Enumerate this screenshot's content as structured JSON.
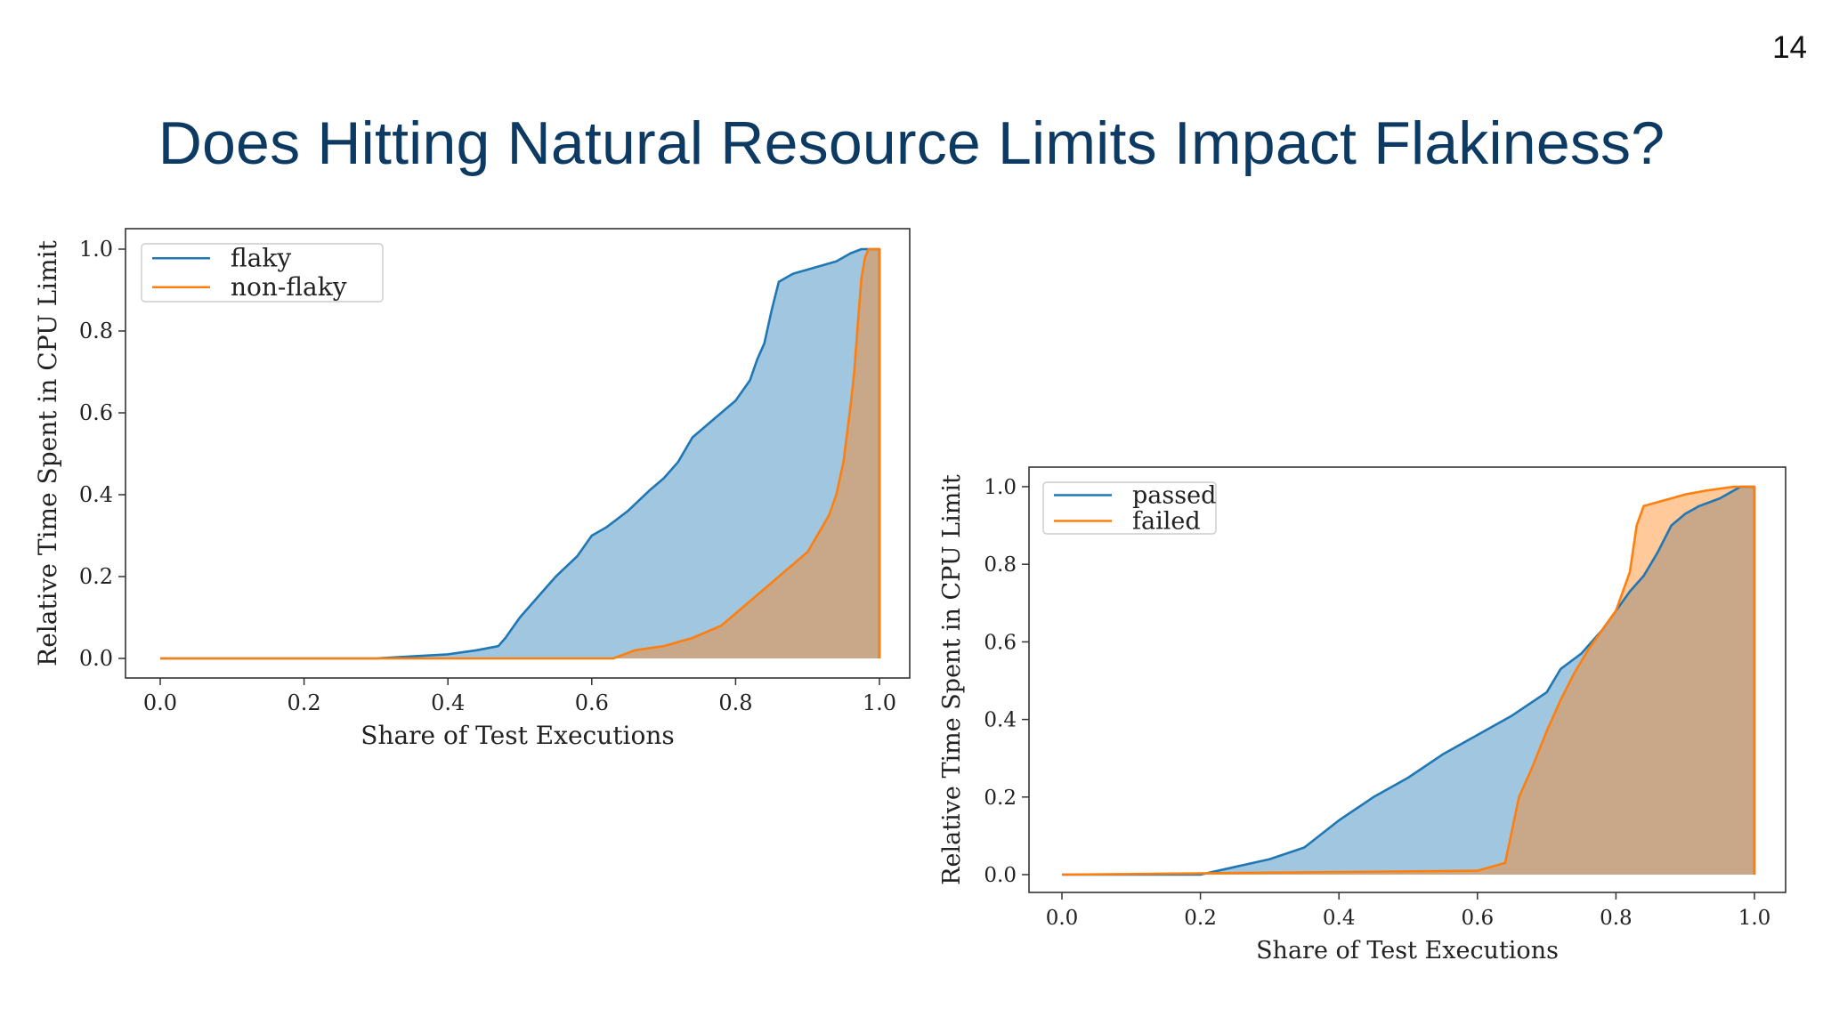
{
  "slide": {
    "page_number": "14",
    "title": "Does Hitting Natural Resource Limits Impact Flakiness?"
  },
  "colors": {
    "blue": "#1f77b4",
    "orange": "#ff7f0e",
    "title": "#0d3a63"
  },
  "chart_data": [
    {
      "type": "area",
      "xlabel": "Share of Test Executions",
      "ylabel": "Relative Time Spent in CPU Limit",
      "xlim": [
        0,
        1
      ],
      "ylim": [
        0,
        1
      ],
      "xticks": [
        "0.0",
        "0.2",
        "0.4",
        "0.6",
        "0.8",
        "1.0"
      ],
      "yticks": [
        "0.0",
        "0.2",
        "0.4",
        "0.6",
        "0.8",
        "1.0"
      ],
      "legend_position": "top-left",
      "series": [
        {
          "name": "flaky",
          "color": "#1f77b4",
          "x": [
            0.0,
            0.3,
            0.35,
            0.4,
            0.44,
            0.47,
            0.48,
            0.5,
            0.53,
            0.55,
            0.58,
            0.6,
            0.62,
            0.65,
            0.68,
            0.7,
            0.72,
            0.74,
            0.76,
            0.78,
            0.8,
            0.82,
            0.83,
            0.84,
            0.85,
            0.86,
            0.88,
            0.9,
            0.92,
            0.94,
            0.96,
            0.975,
            1.0
          ],
          "y": [
            0.0,
            0.0,
            0.005,
            0.01,
            0.02,
            0.03,
            0.05,
            0.1,
            0.16,
            0.2,
            0.25,
            0.3,
            0.32,
            0.36,
            0.41,
            0.44,
            0.48,
            0.54,
            0.57,
            0.6,
            0.63,
            0.68,
            0.73,
            0.77,
            0.85,
            0.92,
            0.94,
            0.95,
            0.96,
            0.97,
            0.99,
            1.0,
            1.0
          ]
        },
        {
          "name": "non-flaky",
          "color": "#ff7f0e",
          "x": [
            0.0,
            0.63,
            0.66,
            0.7,
            0.74,
            0.78,
            0.82,
            0.86,
            0.9,
            0.92,
            0.93,
            0.94,
            0.95,
            0.955,
            0.96,
            0.965,
            0.97,
            0.975,
            0.98,
            0.985,
            1.0
          ],
          "y": [
            0.0,
            0.0,
            0.02,
            0.03,
            0.05,
            0.08,
            0.14,
            0.2,
            0.26,
            0.32,
            0.35,
            0.4,
            0.48,
            0.55,
            0.62,
            0.7,
            0.82,
            0.93,
            0.98,
            1.0,
            1.0
          ]
        }
      ]
    },
    {
      "type": "area",
      "xlabel": "Share of Test Executions",
      "ylabel": "Relative Time Spent in CPU Limit",
      "xlim": [
        0,
        1
      ],
      "ylim": [
        0,
        1
      ],
      "xticks": [
        "0.0",
        "0.2",
        "0.4",
        "0.6",
        "0.8",
        "1.0"
      ],
      "yticks": [
        "0.0",
        "0.2",
        "0.4",
        "0.6",
        "0.8",
        "1.0"
      ],
      "legend_position": "top-left",
      "series": [
        {
          "name": "passed",
          "color": "#1f77b4",
          "x": [
            0.0,
            0.2,
            0.25,
            0.3,
            0.35,
            0.4,
            0.45,
            0.5,
            0.55,
            0.6,
            0.65,
            0.7,
            0.72,
            0.75,
            0.78,
            0.8,
            0.82,
            0.84,
            0.86,
            0.88,
            0.9,
            0.92,
            0.95,
            0.98,
            1.0
          ],
          "y": [
            0.0,
            0.0,
            0.02,
            0.04,
            0.07,
            0.14,
            0.2,
            0.25,
            0.31,
            0.36,
            0.41,
            0.47,
            0.53,
            0.57,
            0.63,
            0.68,
            0.73,
            0.77,
            0.83,
            0.9,
            0.93,
            0.95,
            0.97,
            1.0,
            1.0
          ]
        },
        {
          "name": "failed",
          "color": "#ff7f0e",
          "x": [
            0.0,
            0.6,
            0.64,
            0.66,
            0.68,
            0.7,
            0.72,
            0.74,
            0.76,
            0.78,
            0.8,
            0.81,
            0.82,
            0.83,
            0.84,
            0.86,
            0.88,
            0.9,
            0.93,
            0.97,
            1.0
          ],
          "y": [
            0.0,
            0.01,
            0.03,
            0.2,
            0.28,
            0.37,
            0.45,
            0.52,
            0.58,
            0.63,
            0.68,
            0.73,
            0.78,
            0.9,
            0.95,
            0.96,
            0.97,
            0.98,
            0.99,
            1.0,
            1.0
          ]
        }
      ]
    }
  ]
}
